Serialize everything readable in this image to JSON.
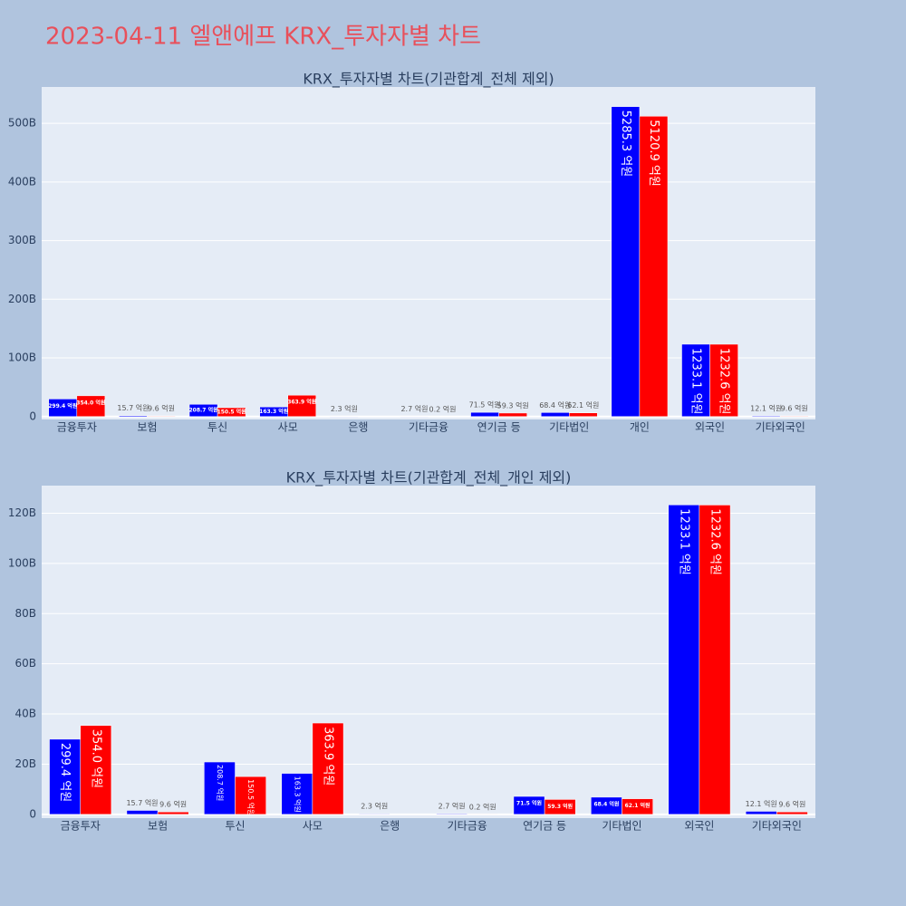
{
  "title": "2023-04-11 엘앤에프 KRX_투자자별 차트",
  "chart_data": [
    {
      "type": "bar",
      "title": "KRX_투자자별 차트(기관합계_전체 제외)",
      "categories": [
        "금융투자",
        "보험",
        "투신",
        "사모",
        "은행",
        "기타금융",
        "연기금 등",
        "기타법인",
        "개인",
        "외국인",
        "기타외국인"
      ],
      "series": [
        {
          "color": "#0000ff",
          "values": [
            29.94,
            1.57,
            20.87,
            16.33,
            0.23,
            0.27,
            7.15,
            6.84,
            528.53,
            123.31,
            1.21
          ],
          "value_labels": [
            "299.4 억원",
            "15.7 억원",
            "208.7 억원",
            "163.3 억원",
            "2.3 억원",
            "2.7 억원",
            "71.5 억원",
            "68.4 억원",
            "5285.3 억원",
            "1233.1 억원",
            "12.1 억원"
          ]
        },
        {
          "color": "#ff0000",
          "values": [
            35.4,
            0.96,
            15.05,
            36.39,
            null,
            0.02,
            5.93,
            6.21,
            512.09,
            123.26,
            0.96
          ],
          "value_labels": [
            "354.0 억원",
            "9.6 억원",
            "150.5 억원",
            "363.9 억원",
            null,
            "0.2 억원",
            "59.3 억원",
            "62.1 억원",
            "5120.9 억원",
            "1232.6 억원",
            "9.6 억원"
          ]
        }
      ],
      "ylim": [
        -5,
        562
      ],
      "yticks": [
        0,
        {
          "value": 100,
          "label": "100B"
        },
        {
          "value": 200,
          "label": "200B"
        },
        {
          "value": 300,
          "label": "300B"
        },
        {
          "value": 400,
          "label": "400B"
        },
        {
          "value": 500,
          "label": "500B"
        }
      ],
      "grid": true
    },
    {
      "type": "bar",
      "title": "KRX_투자자별 차트(기관합계_전체_개인 제외)",
      "categories": [
        "금융투자",
        "보험",
        "투신",
        "사모",
        "은행",
        "기타금융",
        "연기금 등",
        "기타법인",
        "외국인",
        "기타외국인"
      ],
      "series": [
        {
          "color": "#0000ff",
          "values": [
            29.94,
            1.57,
            20.87,
            16.33,
            0.23,
            0.27,
            7.15,
            6.84,
            123.31,
            1.21
          ],
          "value_labels": [
            "299.4 억원",
            "15.7 억원",
            "208.7 억원",
            "163.3 억원",
            "2.3 억원",
            "2.7 억원",
            "71.5 억원",
            "68.4 억원",
            "1233.1 억원",
            "12.1 억원"
          ]
        },
        {
          "color": "#ff0000",
          "values": [
            35.4,
            0.96,
            15.05,
            36.39,
            null,
            0.02,
            5.93,
            6.21,
            123.26,
            0.96
          ],
          "value_labels": [
            "354.0 억원",
            "9.6 억원",
            "150.5 억원",
            "363.9 억원",
            null,
            "0.2 억원",
            "59.3 억원",
            "62.1 억원",
            "1232.6 억원",
            "9.6 억원"
          ]
        }
      ],
      "ylim": [
        -1.5,
        131
      ],
      "yticks": [
        0,
        {
          "value": 20,
          "label": "20B"
        },
        {
          "value": 40,
          "label": "40B"
        },
        {
          "value": 60,
          "label": "60B"
        },
        {
          "value": 80,
          "label": "80B"
        },
        {
          "value": 100,
          "label": "100B"
        },
        {
          "value": 120,
          "label": "120B"
        }
      ],
      "grid": true
    }
  ]
}
